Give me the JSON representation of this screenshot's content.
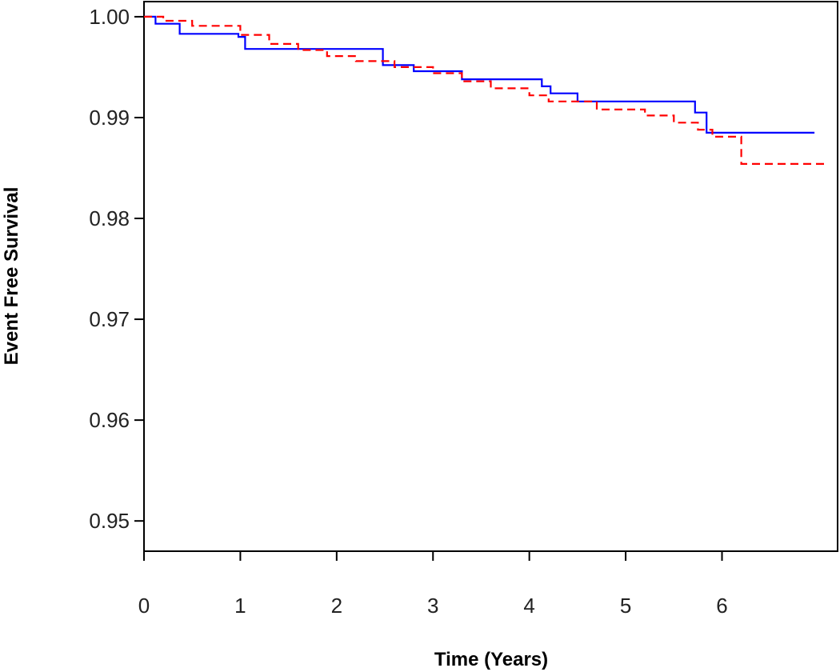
{
  "chart_data": {
    "type": "line",
    "step": true,
    "title": "",
    "xlabel": "Time (Years)",
    "ylabel": "Event Free Survival",
    "xlim": [
      0,
      7.2
    ],
    "ylim": [
      0.947,
      1.0015
    ],
    "x_ticks": [
      0,
      1,
      2,
      3,
      4,
      5,
      6
    ],
    "y_ticks": [
      0.95,
      0.96,
      0.97,
      0.98,
      0.99,
      1.0
    ],
    "x_tick_labels": [
      "0",
      "1",
      "2",
      "3",
      "4",
      "5",
      "6"
    ],
    "y_tick_labels": [
      "0.95",
      "0.96",
      "0.97",
      "0.98",
      "0.99",
      "1.00"
    ],
    "grid": false,
    "legend": "none",
    "series": [
      {
        "color": "#0000ff",
        "dash": "solid",
        "points": [
          [
            0.0,
            1.0
          ],
          [
            0.12,
            0.9993
          ],
          [
            0.37,
            0.9983
          ],
          [
            0.98,
            0.998
          ],
          [
            1.05,
            0.9968
          ],
          [
            2.48,
            0.9952
          ],
          [
            2.8,
            0.9946
          ],
          [
            3.3,
            0.9938
          ],
          [
            4.13,
            0.9931
          ],
          [
            4.22,
            0.9924
          ],
          [
            4.5,
            0.9916
          ],
          [
            5.72,
            0.9905
          ],
          [
            5.84,
            0.9885
          ],
          [
            6.96,
            0.9885
          ]
        ]
      },
      {
        "color": "#ff0000",
        "dash": "dashed",
        "points": [
          [
            0.0,
            1.0
          ],
          [
            0.2,
            0.9996
          ],
          [
            0.5,
            0.9991
          ],
          [
            1.0,
            0.9982
          ],
          [
            1.3,
            0.9973
          ],
          [
            1.6,
            0.9967
          ],
          [
            1.9,
            0.9961
          ],
          [
            2.2,
            0.9956
          ],
          [
            2.6,
            0.995
          ],
          [
            3.0,
            0.9944
          ],
          [
            3.3,
            0.9936
          ],
          [
            3.6,
            0.9929
          ],
          [
            4.0,
            0.9922
          ],
          [
            4.2,
            0.9916
          ],
          [
            4.7,
            0.9908
          ],
          [
            5.2,
            0.9902
          ],
          [
            5.5,
            0.9895
          ],
          [
            5.75,
            0.9888
          ],
          [
            5.9,
            0.9881
          ],
          [
            6.2,
            0.9854
          ],
          [
            7.1,
            0.9854
          ]
        ]
      }
    ]
  }
}
